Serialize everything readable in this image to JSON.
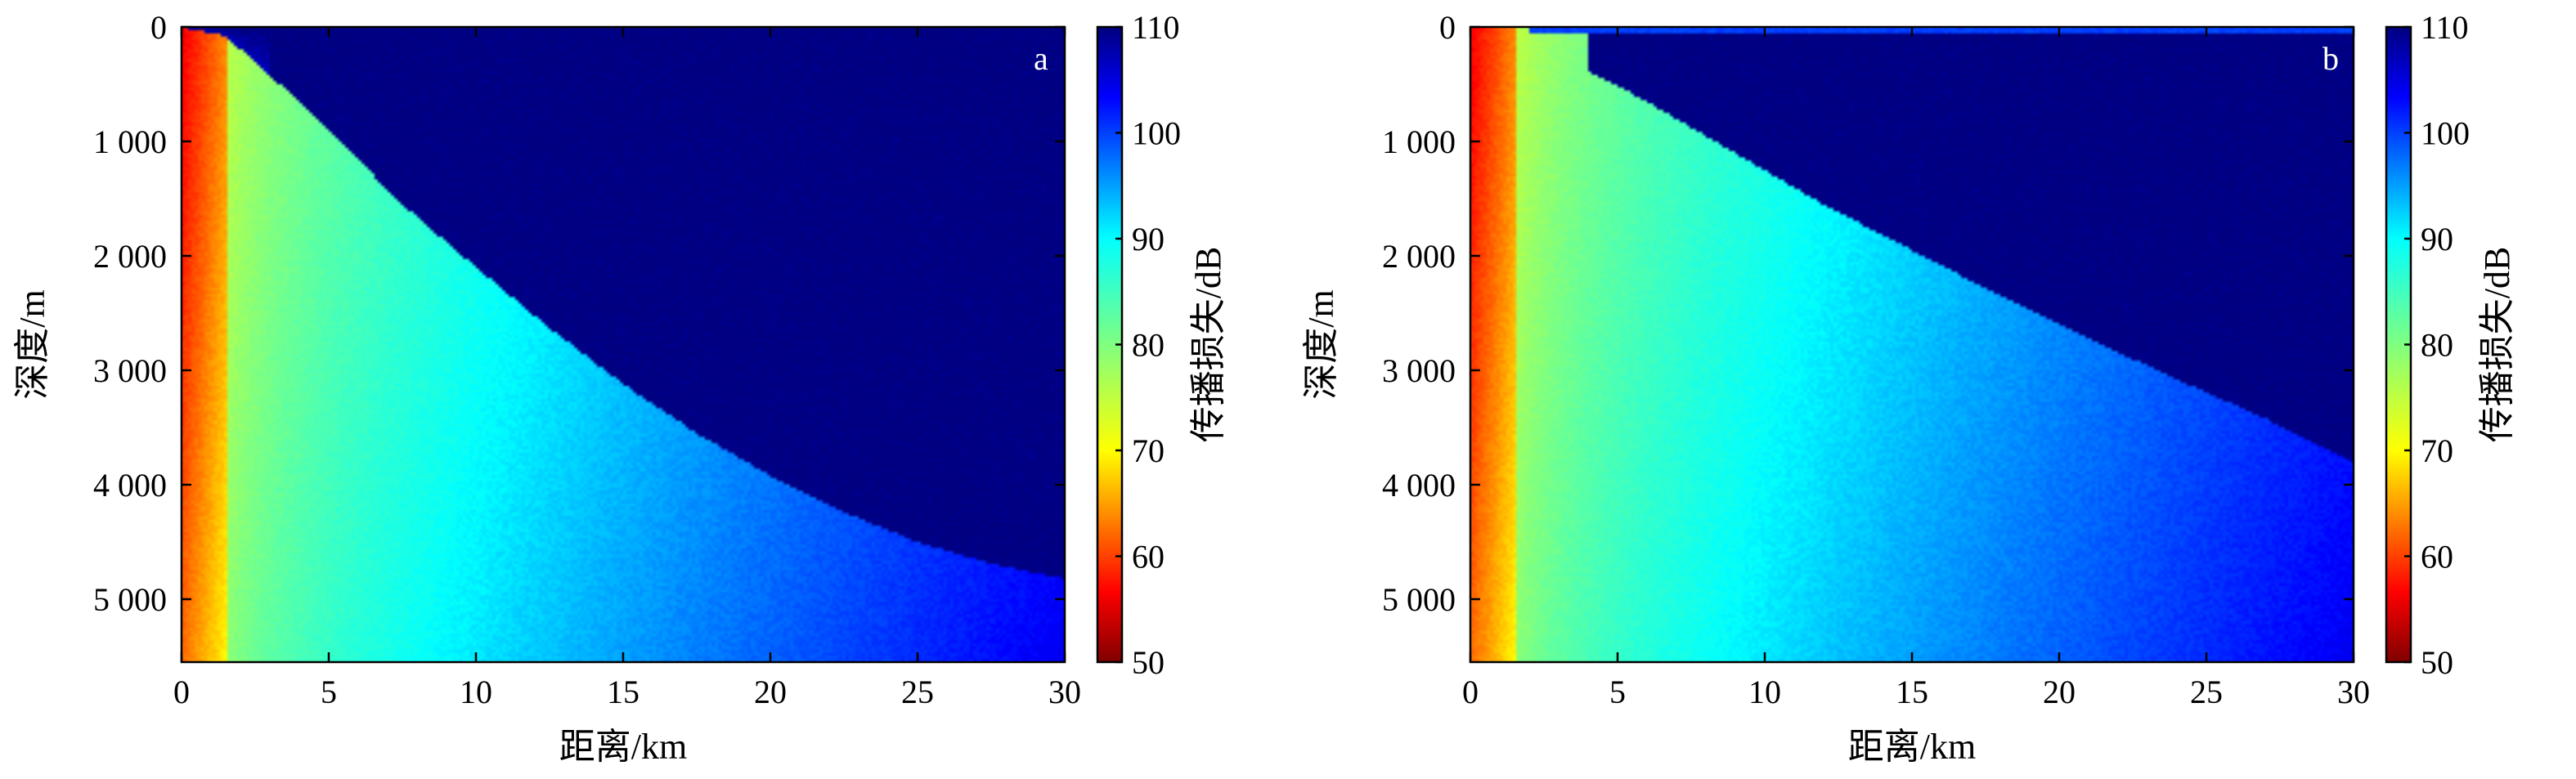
{
  "chart_data": [
    {
      "type": "heatmap",
      "panel_label": "a",
      "xlabel": "距离/km",
      "ylabel": "深度/m",
      "xlim": [
        0,
        30
      ],
      "ylim": [
        0,
        5550
      ],
      "y_inverted": true,
      "x_ticks": [
        "0",
        "5",
        "10",
        "15",
        "20",
        "25",
        "30"
      ],
      "x_tick_values": [
        0,
        5,
        10,
        15,
        20,
        25,
        30
      ],
      "y_ticks": [
        "0",
        "1 000",
        "2 000",
        "3 000",
        "4 000",
        "5 000"
      ],
      "y_tick_values": [
        0,
        1000,
        2000,
        3000,
        4000,
        5000
      ],
      "colorbar": {
        "label": "传播损失/dB",
        "range": [
          50,
          110
        ],
        "ticks": [
          "50",
          "60",
          "70",
          "80",
          "90",
          "100",
          "110"
        ],
        "tick_values": [
          50,
          60,
          70,
          80,
          90,
          100,
          110
        ],
        "colormap": "jet_reversed"
      },
      "shadow_boundary_depth_m": [
        [
          0,
          0
        ],
        [
          1.5,
          80
        ],
        [
          3,
          420
        ],
        [
          5,
          900
        ],
        [
          7.5,
          1550
        ],
        [
          10,
          2100
        ],
        [
          12.5,
          2630
        ],
        [
          15,
          3120
        ],
        [
          17.5,
          3550
        ],
        [
          20,
          3920
        ],
        [
          22.5,
          4240
        ],
        [
          25,
          4500
        ],
        [
          27.5,
          4690
        ],
        [
          30,
          4820
        ]
      ],
      "shadow_loss_db": 110
    },
    {
      "type": "heatmap",
      "panel_label": "b",
      "xlabel": "距离/km",
      "ylabel": "深度/m",
      "xlim": [
        0,
        30
      ],
      "ylim": [
        0,
        5550
      ],
      "y_inverted": true,
      "x_ticks": [
        "0",
        "5",
        "10",
        "15",
        "20",
        "25",
        "30"
      ],
      "x_tick_values": [
        0,
        5,
        10,
        15,
        20,
        25,
        30
      ],
      "y_ticks": [
        "0",
        "1 000",
        "2 000",
        "3 000",
        "4 000",
        "5 000"
      ],
      "y_tick_values": [
        0,
        1000,
        2000,
        3000,
        4000,
        5000
      ],
      "colorbar": {
        "label": "传播损失/dB",
        "range": [
          50,
          110
        ],
        "ticks": [
          "50",
          "60",
          "70",
          "80",
          "90",
          "100",
          "110"
        ],
        "tick_values": [
          50,
          60,
          70,
          80,
          90,
          100,
          110
        ],
        "colormap": "jet_reversed"
      },
      "shadow_boundary_depth_m": [
        [
          4,
          380
        ],
        [
          6,
          650
        ],
        [
          8,
          950
        ],
        [
          10,
          1250
        ],
        [
          12,
          1550
        ],
        [
          15,
          1950
        ],
        [
          18,
          2350
        ],
        [
          21,
          2720
        ],
        [
          24,
          3080
        ],
        [
          27,
          3420
        ],
        [
          30,
          3800
        ]
      ],
      "shadow_loss_db": 110
    }
  ]
}
